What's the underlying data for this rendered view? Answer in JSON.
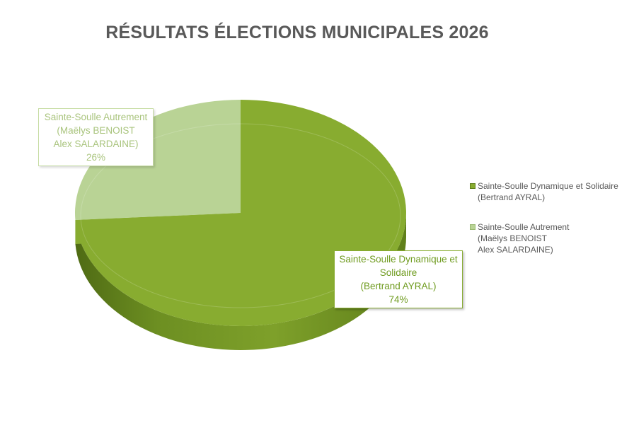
{
  "chart_data": {
    "type": "pie",
    "title": "RÉSULTATS ÉLECTIONS MUNICIPALES 2026",
    "style": "3d-pie",
    "series": [
      {
        "name": "Sainte-Soulle Dynamique et Solidaire",
        "candidate": "(Bertrand AYRAL)",
        "value": 74,
        "label_lines": [
          "Sainte-Soulle Dynamique et",
          "Solidaire",
          "(Bertrand AYRAL)",
          "74%"
        ],
        "legend_lines": [
          "Sainte-Soulle Dynamique et Solidaire",
          "(Bertrand AYRAL)"
        ],
        "color": "#88ac30"
      },
      {
        "name": "Sainte-Soulle Autrement",
        "candidate": "(Maëlys BENOIST Alex SALARDAINE)",
        "value": 26,
        "label_lines": [
          "Sainte-Soulle Autrement",
          "(Maëlys BENOIST",
          "Alex SALARDAINE)",
          "26%"
        ],
        "legend_lines": [
          "Sainte-Soulle Autrement",
          "(Maëlys BENOIST",
          "Alex SALARDAINE)"
        ],
        "color": "#b9d395"
      }
    ],
    "legend_position": "right"
  }
}
